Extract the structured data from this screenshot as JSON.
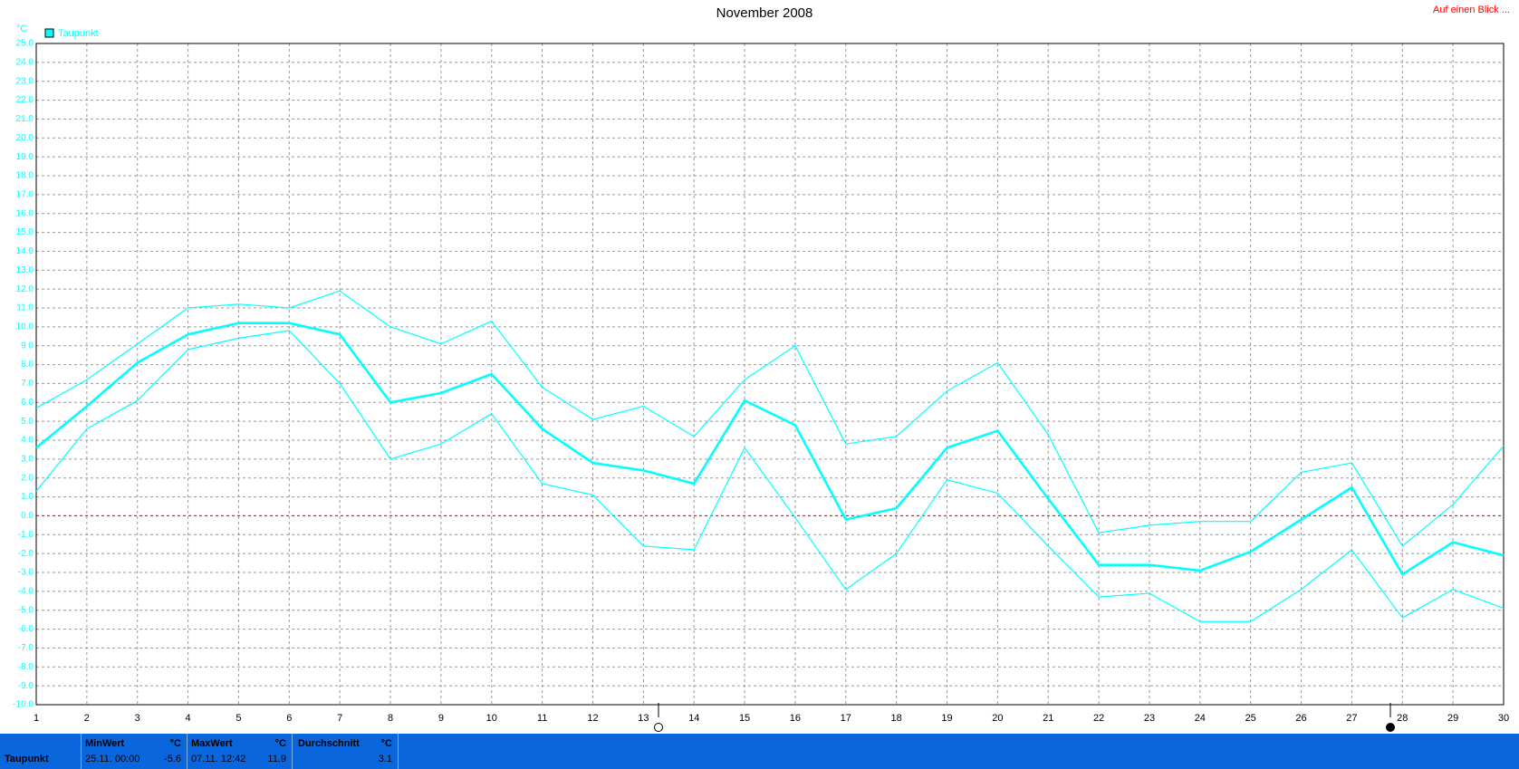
{
  "chart_data": {
    "type": "line",
    "title": "November 2008",
    "y_label": "°C",
    "x": [
      1,
      2,
      3,
      4,
      5,
      6,
      7,
      8,
      9,
      10,
      11,
      12,
      13,
      14,
      15,
      16,
      17,
      18,
      19,
      20,
      21,
      22,
      23,
      24,
      25,
      26,
      27,
      28,
      29,
      30
    ],
    "xlim": [
      1,
      30
    ],
    "xticks": [
      1,
      2,
      3,
      4,
      5,
      6,
      7,
      8,
      9,
      10,
      11,
      12,
      13,
      14,
      15,
      16,
      17,
      18,
      19,
      20,
      21,
      22,
      23,
      24,
      25,
      26,
      27,
      28,
      29,
      30
    ],
    "ylim": [
      -10,
      25
    ],
    "yticks": [
      {
        "value": 25,
        "label": "25.0"
      },
      {
        "value": 24,
        "label": "24.0"
      },
      {
        "value": 23,
        "label": "23.0"
      },
      {
        "value": 22,
        "label": "22.0"
      },
      {
        "value": 21,
        "label": "21.0"
      },
      {
        "value": 20,
        "label": "20.0"
      },
      {
        "value": 19,
        "label": "19.0"
      },
      {
        "value": 18,
        "label": "18.0"
      },
      {
        "value": 17,
        "label": "17.0"
      },
      {
        "value": 16,
        "label": "16.0"
      },
      {
        "value": 15,
        "label": "15.0"
      },
      {
        "value": 14,
        "label": "14.0"
      },
      {
        "value": 13,
        "label": "13.0"
      },
      {
        "value": 12,
        "label": "12.0"
      },
      {
        "value": 11,
        "label": "11.0"
      },
      {
        "value": 10,
        "label": "10.0"
      },
      {
        "value": 9,
        "label": "9.0"
      },
      {
        "value": 8,
        "label": "8.0"
      },
      {
        "value": 7,
        "label": "7.0"
      },
      {
        "value": 6,
        "label": "6.0"
      },
      {
        "value": 5,
        "label": "5.0"
      },
      {
        "value": 4,
        "label": "4.0"
      },
      {
        "value": 3,
        "label": "3.0"
      },
      {
        "value": 2,
        "label": "2.0"
      },
      {
        "value": 1,
        "label": "1.0"
      },
      {
        "value": 0,
        "label": "0.0"
      },
      {
        "value": -1,
        "label": "-1.0"
      },
      {
        "value": -2,
        "label": "-2.0"
      },
      {
        "value": -3,
        "label": "-3.0"
      },
      {
        "value": -4,
        "label": "-4.0"
      },
      {
        "value": -5,
        "label": "-5.0"
      },
      {
        "value": -6,
        "label": "-6.0"
      },
      {
        "value": -7,
        "label": "-7.0"
      },
      {
        "value": -8,
        "label": "-8.0"
      },
      {
        "value": -9,
        "label": "-9.0"
      },
      {
        "value": -10,
        "label": "-10.0"
      }
    ],
    "grid": true,
    "zero_line_color": "#ff0000",
    "legend": "top-left",
    "series": [
      {
        "name": "Taupunkt",
        "color": "#00ffff",
        "values": [
          3.6,
          5.8,
          8.1,
          9.6,
          10.2,
          10.2,
          9.6,
          6.0,
          6.5,
          7.5,
          4.6,
          2.8,
          2.4,
          1.7,
          6.1,
          4.8,
          -0.2,
          0.4,
          3.6,
          4.5,
          0.9,
          -2.6,
          -2.6,
          -2.9,
          -1.9,
          -0.2,
          1.5,
          -3.1,
          -1.4,
          -2.1
        ]
      },
      {
        "color": "#00ffff",
        "values": [
          5.7,
          7.2,
          9.1,
          11.0,
          11.2,
          11.0,
          11.9,
          10.0,
          9.1,
          10.3,
          6.8,
          5.1,
          5.8,
          4.2,
          7.2,
          9.0,
          3.8,
          4.2,
          6.6,
          8.1,
          4.3,
          -0.9,
          -0.5,
          -0.3,
          -0.3,
          2.3,
          2.8,
          -1.6,
          0.6,
          3.7
        ]
      },
      {
        "color": "#00ffff",
        "values": [
          1.3,
          4.6,
          6.1,
          8.8,
          9.4,
          9.8,
          7.0,
          3.0,
          3.8,
          5.4,
          1.7,
          1.1,
          -1.6,
          -1.8,
          3.6,
          -0.1,
          -3.9,
          -2.0,
          1.9,
          1.2,
          -1.6,
          -4.3,
          -4.1,
          -5.6,
          -5.6,
          -3.9,
          -1.8,
          -5.4,
          -3.9,
          -4.9
        ]
      }
    ]
  },
  "link": "Auf einen Blick ...",
  "summary": {
    "name": "Taupunkt",
    "min": {
      "label": "MinWert",
      "unit": "°C",
      "time": "25.11.  00:00",
      "value": "-5.6"
    },
    "max": {
      "label": "MaxWert",
      "unit": "°C",
      "time": "07.11.  12:42",
      "value": "11.9"
    },
    "avg": {
      "label": "Durchschnitt",
      "unit": "°C",
      "value": "3.1"
    }
  }
}
